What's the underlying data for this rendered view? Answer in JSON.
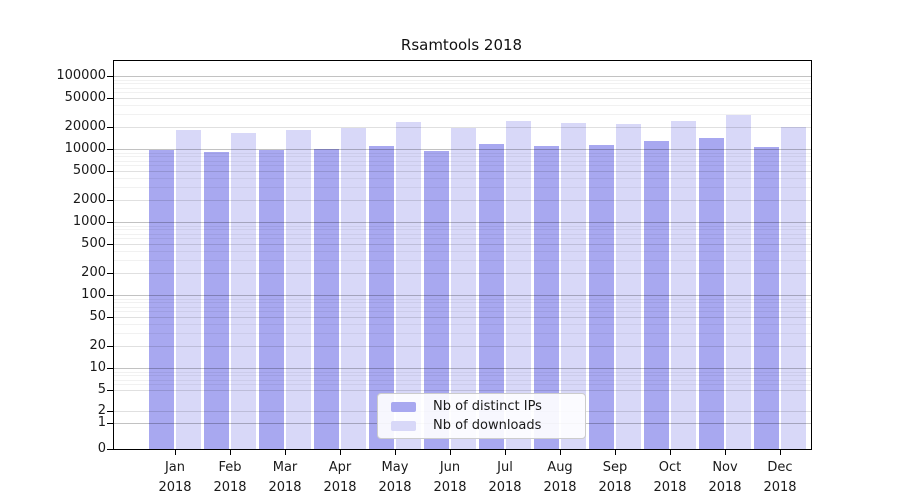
{
  "title": "Rsamtools 2018",
  "colors": {
    "distinct_ips": "#a8a8f0",
    "downloads": "#d8d8f8",
    "spine": "#000000"
  },
  "chart_data": {
    "type": "bar",
    "title": "Rsamtools 2018",
    "categories": [
      "Jan 2018",
      "Feb 2018",
      "Mar 2018",
      "Apr 2018",
      "May 2018",
      "Jun 2018",
      "Jul 2018",
      "Aug 2018",
      "Sep 2018",
      "Oct 2018",
      "Nov 2018",
      "Dec 2018"
    ],
    "series": [
      {
        "name": "Nb of distinct IPs",
        "color": "#a8a8f0",
        "values": [
          9900,
          9300,
          9900,
          10000,
          11200,
          9500,
          12000,
          11000,
          11500,
          12800,
          14200,
          10900
        ]
      },
      {
        "name": "Nb of downloads",
        "color": "#d8d8f8",
        "values": [
          18200,
          16900,
          18600,
          19500,
          23400,
          19800,
          24300,
          22600,
          22000,
          24500,
          29500,
          20100
        ]
      }
    ],
    "yscale": "symlog",
    "yticks": [
      100000,
      50000,
      20000,
      10000,
      5000,
      2000,
      1000,
      500,
      200,
      100,
      50,
      20,
      10,
      5,
      2,
      1,
      0
    ],
    "ylim": [
      0,
      200000
    ],
    "grid": true,
    "grid_over_bars": true,
    "legend_position": "lower center"
  }
}
